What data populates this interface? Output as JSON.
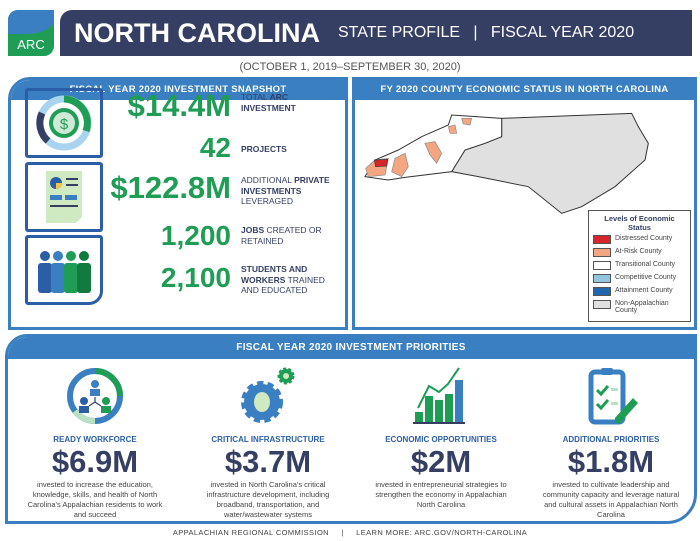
{
  "logo": {
    "text": "ARC"
  },
  "header": {
    "state": "NORTH CAROLINA",
    "subtitle": "STATE PROFILE   |   FISCAL YEAR 2020"
  },
  "dates": "(OCTOBER 1, 2019–SEPTEMBER 30, 2020)",
  "snapshot": {
    "title": "FISCAL YEAR 2020 INVESTMENT SNAPSHOT",
    "stats": [
      {
        "value": "$14.4M",
        "label_pre": "TOTAL ",
        "label_bold": "ARC INVESTMENT",
        "label_post": ""
      },
      {
        "value": "42",
        "label_pre": "",
        "label_bold": "PROJECTS",
        "label_post": ""
      },
      {
        "value": "$122.8M",
        "label_pre": "ADDITIONAL ",
        "label_bold": "PRIVATE INVESTMENTS",
        "label_post": " LEVERAGED"
      },
      {
        "value": "1,200",
        "label_pre": "",
        "label_bold": "JOBS",
        "label_post": " CREATED OR RETAINED"
      },
      {
        "value": "2,100",
        "label_pre": "",
        "label_bold": "STUDENTS AND WORKERS",
        "label_post": " TRAINED AND EDUCATED"
      }
    ]
  },
  "map": {
    "title": "FY 2020 COUNTY ECONOMIC STATUS IN NORTH CAROLINA",
    "legend_title": "Levels of Economic Status",
    "legend": [
      {
        "label": "Distressed County",
        "color": "#d7262b"
      },
      {
        "label": "At-Risk County",
        "color": "#f4a582"
      },
      {
        "label": "Transitional County",
        "color": "#ffffff"
      },
      {
        "label": "Competitive County",
        "color": "#92c5de"
      },
      {
        "label": "Attainment County",
        "color": "#2166ac"
      },
      {
        "label": "Non-Appalachian County",
        "color": "#e0e0e0"
      }
    ]
  },
  "priorities": {
    "title": "FISCAL YEAR 2020 INVESTMENT PRIORITIES",
    "items": [
      {
        "title": "READY WORKFORCE",
        "amount": "$6.9M",
        "desc": "invested to increase the education, knowledge, skills, and health of North Carolina's Appalachian residents to work and succeed"
      },
      {
        "title": "CRITICAL INFRASTRUCTURE",
        "amount": "$3.7M",
        "desc": "invested in North Carolina's critical infrastructure development, including broadband, transportation, and water/wastewater systems"
      },
      {
        "title": "ECONOMIC OPPORTUNITIES",
        "amount": "$2M",
        "desc": "invested in entrepreneurial strategies to strengthen the economy in Appalachian North Carolina"
      },
      {
        "title": "ADDITIONAL PRIORITIES",
        "amount": "$1.8M",
        "desc": "invested to cultivate leadership and community capacity and leverage natural and cultural assets in Appalachian North Carolina"
      }
    ]
  },
  "footer": "APPALACHIAN REGIONAL COMMISSION     |     LEARN MORE: ARC.GOV/NORTH-CAROLINA"
}
